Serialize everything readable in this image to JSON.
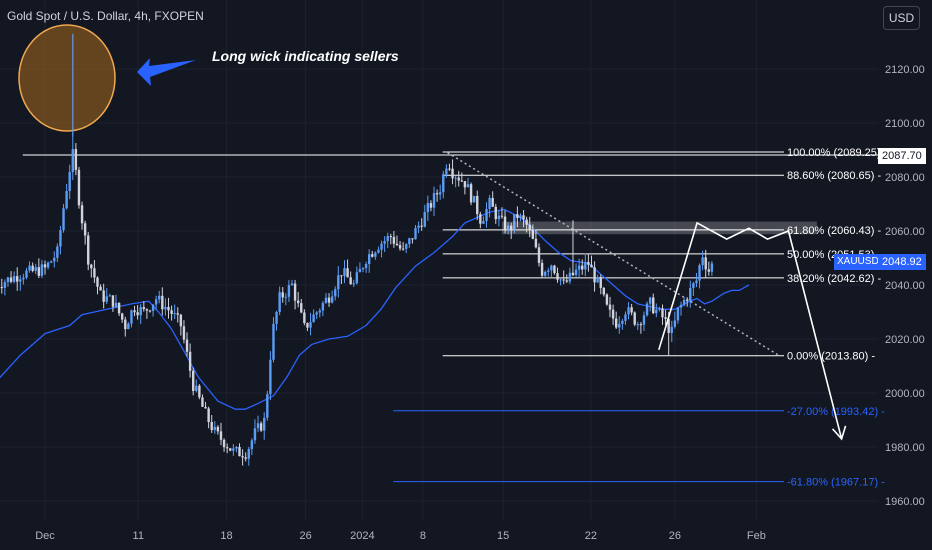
{
  "header": {
    "title": "Gold Spot / U.S. Dollar, 4h, FXOPEN",
    "currency_button": "USD"
  },
  "annotation": {
    "text": "Long wick indicating sellers"
  },
  "chart_data": {
    "type": "candlestick",
    "symbol": "XAUUSD",
    "ylim": [
      1955,
      2140
    ],
    "y_ticks": [
      1960,
      1980,
      2000,
      2020,
      2040,
      2060,
      2080,
      2100,
      2120
    ],
    "y_tick_labels": [
      "1960.00",
      "1980.00",
      "2000.00",
      "2020.00",
      "2040.00",
      "2060.00",
      "2080.00",
      "2100.00",
      "2120.00"
    ],
    "x_tick_labels": [
      "Dec",
      "11",
      "18",
      "26",
      "2024",
      "8",
      "15",
      "22",
      "26",
      "Feb"
    ],
    "x_tick_units": [
      0,
      7.55,
      14.7,
      21.1,
      25.7,
      30.6,
      37.1,
      44.2,
      51.0,
      57.6
    ],
    "x_range_units": [
      -4,
      63.5
    ],
    "price_tags": {
      "last_close": "2087.70",
      "current": "2048.92",
      "current_symbol": "XAUUSD"
    },
    "horizontal_level": 2089.25,
    "fibonacci": [
      {
        "label": "100.00% (2089.25)",
        "price": 2089.25,
        "color": "#ffffff"
      },
      {
        "label": "88.60% (2080.65)",
        "price": 2080.65,
        "color": "#ffffff"
      },
      {
        "label": "61.80% (2060.43)",
        "price": 2060.43,
        "color": "#ffffff"
      },
      {
        "label": "50.00% (2051.53)",
        "price": 2051.53,
        "color": "#ffffff"
      },
      {
        "label": "38.20% (2042.62)",
        "price": 2042.62,
        "color": "#ffffff"
      },
      {
        "label": "0.00% (2013.80)",
        "price": 2013.8,
        "color": "#ffffff"
      },
      {
        "label": "-27.00% (1993.42)",
        "price": 1993.42,
        "color": "#2962ff"
      },
      {
        "label": "-61.80% (1967.17)",
        "price": 1967.17,
        "color": "#2962ff"
      }
    ],
    "ohlc_keypoints": [
      [
        -4,
        2040
      ],
      [
        -2,
        2044
      ],
      [
        0,
        2046
      ],
      [
        1,
        2052
      ],
      [
        1.6,
        2072
      ],
      [
        2.0,
        2083
      ],
      [
        2.3,
        2089
      ],
      [
        2.8,
        2070
      ],
      [
        3.5,
        2050
      ],
      [
        4.5,
        2036
      ],
      [
        5.5,
        2034
      ],
      [
        6.5,
        2025
      ],
      [
        7.2,
        2032
      ],
      [
        8.0,
        2030
      ],
      [
        9.0,
        2035
      ],
      [
        10.2,
        2030
      ],
      [
        11.0,
        2025
      ],
      [
        12.0,
        2003
      ],
      [
        13.0,
        1992
      ],
      [
        13.8,
        1985
      ],
      [
        14.5,
        1982
      ],
      [
        15.3,
        1978
      ],
      [
        16.3,
        1978
      ],
      [
        17.0,
        1985
      ],
      [
        17.8,
        1990
      ],
      [
        18.4,
        2022
      ],
      [
        19.0,
        2035
      ],
      [
        20.0,
        2040
      ],
      [
        21.0,
        2024
      ],
      [
        22.0,
        2030
      ],
      [
        23.0,
        2036
      ],
      [
        24.0,
        2045
      ],
      [
        25.0,
        2040
      ],
      [
        26.0,
        2050
      ],
      [
        27.0,
        2055
      ],
      [
        28.0,
        2058
      ],
      [
        29.0,
        2052
      ],
      [
        30.0,
        2060
      ],
      [
        31.0,
        2068
      ],
      [
        32.0,
        2076
      ],
      [
        32.6,
        2087
      ],
      [
        33.0,
        2082
      ],
      [
        34.0,
        2078
      ],
      [
        34.8,
        2070
      ],
      [
        35.3,
        2064
      ],
      [
        36.0,
        2070
      ],
      [
        36.8,
        2064
      ],
      [
        37.6,
        2060
      ],
      [
        38.2,
        2066
      ],
      [
        39.0,
        2062
      ],
      [
        39.6,
        2055
      ],
      [
        40.2,
        2045
      ],
      [
        41.0,
        2048
      ],
      [
        42.0,
        2040
      ],
      [
        43.0,
        2045
      ],
      [
        44.0,
        2048
      ],
      [
        44.8,
        2040
      ],
      [
        45.6,
        2030
      ],
      [
        46.3,
        2026
      ],
      [
        47.0,
        2031
      ],
      [
        48.0,
        2026
      ],
      [
        49.0,
        2033
      ],
      [
        50.0,
        2028
      ],
      [
        50.8,
        2022
      ],
      [
        51.2,
        2030
      ],
      [
        52.0,
        2036
      ],
      [
        52.8,
        2042
      ],
      [
        53.2,
        2052
      ],
      [
        53.7,
        2045
      ],
      [
        54.2,
        2049
      ]
    ],
    "moving_average": [
      [
        -4,
        2004
      ],
      [
        -2,
        2014
      ],
      [
        0,
        2022
      ],
      [
        2,
        2025
      ],
      [
        3,
        2029
      ],
      [
        5,
        2031
      ],
      [
        7,
        2033
      ],
      [
        8.4,
        2034
      ],
      [
        9.2,
        2030
      ],
      [
        10.2,
        2024
      ],
      [
        11.2,
        2016
      ],
      [
        12.4,
        2006
      ],
      [
        14.0,
        1997
      ],
      [
        15.4,
        1994
      ],
      [
        16.2,
        1994
      ],
      [
        17.2,
        1996
      ],
      [
        18.5,
        1999
      ],
      [
        19.6,
        2006
      ],
      [
        20.6,
        2014
      ],
      [
        21.6,
        2018
      ],
      [
        23.0,
        2020
      ],
      [
        24.5,
        2021
      ],
      [
        26.0,
        2025
      ],
      [
        27.2,
        2031
      ],
      [
        28.4,
        2039
      ],
      [
        30.0,
        2047
      ],
      [
        31.5,
        2052
      ],
      [
        33.0,
        2058
      ],
      [
        34.0,
        2063
      ],
      [
        35.0,
        2065
      ],
      [
        36.0,
        2067
      ],
      [
        37.2,
        2068
      ],
      [
        38.5,
        2065
      ],
      [
        39.5,
        2061
      ],
      [
        40.6,
        2056
      ],
      [
        41.6,
        2052
      ],
      [
        42.6,
        2049
      ],
      [
        44.0,
        2048
      ],
      [
        45.0,
        2044
      ],
      [
        46.0,
        2040
      ],
      [
        47.0,
        2036
      ],
      [
        48.0,
        2033
      ],
      [
        49.0,
        2032
      ],
      [
        50.0,
        2031
      ],
      [
        51.0,
        2031
      ],
      [
        51.8,
        2033
      ],
      [
        52.2,
        2034
      ],
      [
        52.8,
        2035
      ],
      [
        53.4,
        2033
      ],
      [
        54.0,
        2034
      ],
      [
        55.0,
        2037
      ],
      [
        55.6,
        2038
      ],
      [
        56.2,
        2038
      ],
      [
        57.0,
        2040
      ]
    ],
    "trendline": {
      "start": [
        32.6,
        2089
      ],
      "end": [
        59.4,
        2014
      ]
    },
    "projection_path": [
      [
        49.7,
        2016
      ],
      [
        52.8,
        2063
      ],
      [
        55.2,
        2057
      ],
      [
        57.0,
        2061
      ],
      [
        58.5,
        2057
      ],
      [
        60.2,
        2060
      ],
      [
        64.5,
        1983
      ]
    ]
  }
}
